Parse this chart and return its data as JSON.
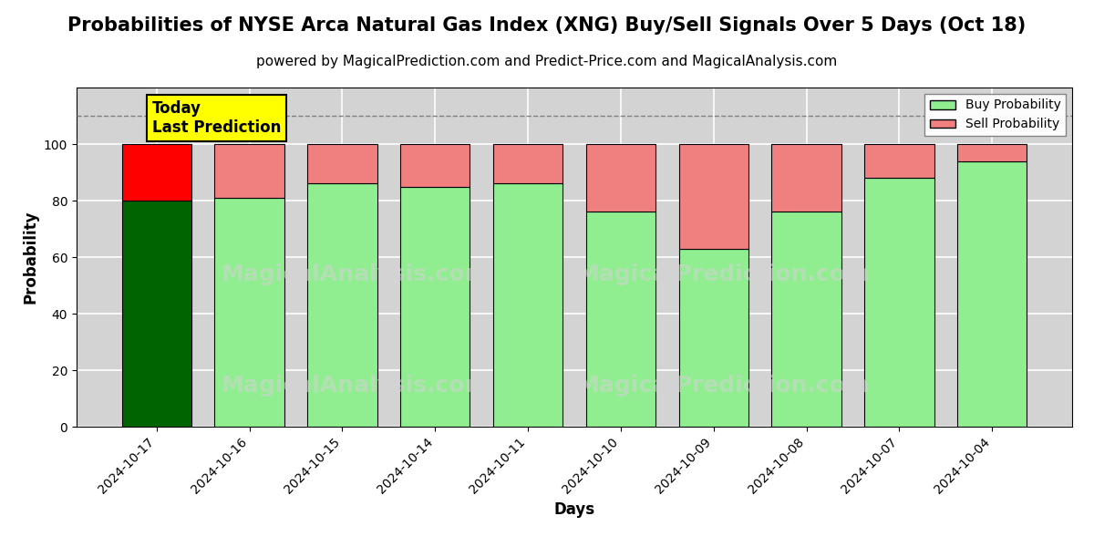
{
  "title": "Probabilities of NYSE Arca Natural Gas Index (XNG) Buy/Sell Signals Over 5 Days (Oct 18)",
  "subtitle": "powered by MagicalPrediction.com and Predict-Price.com and MagicalAnalysis.com",
  "xlabel": "Days",
  "ylabel": "Probability",
  "categories": [
    "2024-10-17",
    "2024-10-16",
    "2024-10-15",
    "2024-10-14",
    "2024-10-11",
    "2024-10-10",
    "2024-10-09",
    "2024-10-08",
    "2024-10-07",
    "2024-10-04"
  ],
  "buy_values": [
    80,
    81,
    86,
    85,
    86,
    76,
    63,
    76,
    88,
    94
  ],
  "sell_values": [
    20,
    19,
    14,
    15,
    14,
    24,
    37,
    24,
    12,
    6
  ],
  "today_buy_color": "#006400",
  "today_sell_color": "#FF0000",
  "buy_color": "#90EE90",
  "sell_color": "#F08080",
  "today_annotation": "Today\nLast Prediction",
  "annotation_bg_color": "#FFFF00",
  "ylim": [
    0,
    120
  ],
  "yticks": [
    0,
    20,
    40,
    60,
    80,
    100
  ],
  "dashed_line_y": 110,
  "bar_width": 0.75,
  "edgecolor": "#000000",
  "grid_color": "#FFFFFF",
  "plot_bg_color": "#D3D3D3",
  "fig_bg_color": "#FFFFFF",
  "title_fontsize": 15,
  "subtitle_fontsize": 11,
  "label_fontsize": 12,
  "tick_fontsize": 10,
  "legend_fontsize": 10,
  "annotation_fontsize": 12
}
